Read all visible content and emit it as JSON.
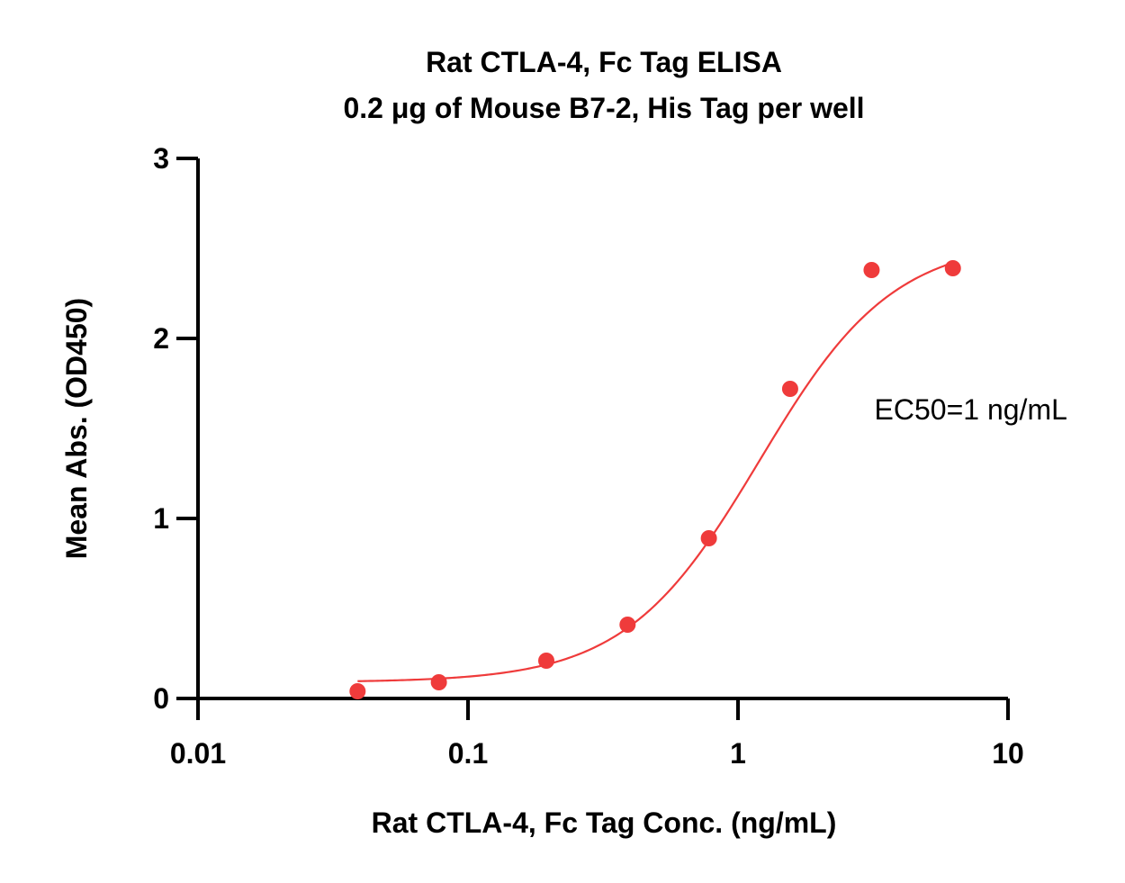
{
  "chart_data": {
    "type": "scatter",
    "title": "Rat CTLA-4, Fc Tag ELISA",
    "subtitle": "0.2 μg of Mouse B7-2, His Tag per well",
    "xlabel": "Rat CTLA-4, Fc Tag Conc. (ng/mL)",
    "ylabel": "Mean Abs. (OD450)",
    "xscale": "log",
    "xlim": [
      0.01,
      10
    ],
    "ylim": [
      0,
      3
    ],
    "x_ticks": [
      0.01,
      0.1,
      1,
      10
    ],
    "x_tick_labels": [
      "0.01",
      "0.1",
      "1",
      "10"
    ],
    "y_ticks": [
      0,
      1,
      2,
      3
    ],
    "y_tick_labels": [
      "0",
      "1",
      "2",
      "3"
    ],
    "grid": false,
    "series": [
      {
        "color": "#ef3b3b",
        "points": [
          {
            "x": 0.039,
            "y": 0.04
          },
          {
            "x": 0.078,
            "y": 0.09
          },
          {
            "x": 0.195,
            "y": 0.21
          },
          {
            "x": 0.39,
            "y": 0.41
          },
          {
            "x": 0.78,
            "y": 0.89
          },
          {
            "x": 1.56,
            "y": 1.72
          },
          {
            "x": 3.125,
            "y": 2.38
          },
          {
            "x": 6.25,
            "y": 2.39
          }
        ],
        "fit": {
          "model": "4PL",
          "bottom": 0.09,
          "top": 2.55,
          "ec50": 1.2,
          "hill": 1.75,
          "x_range": [
            0.039,
            6.25
          ]
        }
      }
    ],
    "annotation": "EC50=1 ng/mL",
    "annotation_anchor": {
      "x": 3.2,
      "y": 1.55
    }
  }
}
